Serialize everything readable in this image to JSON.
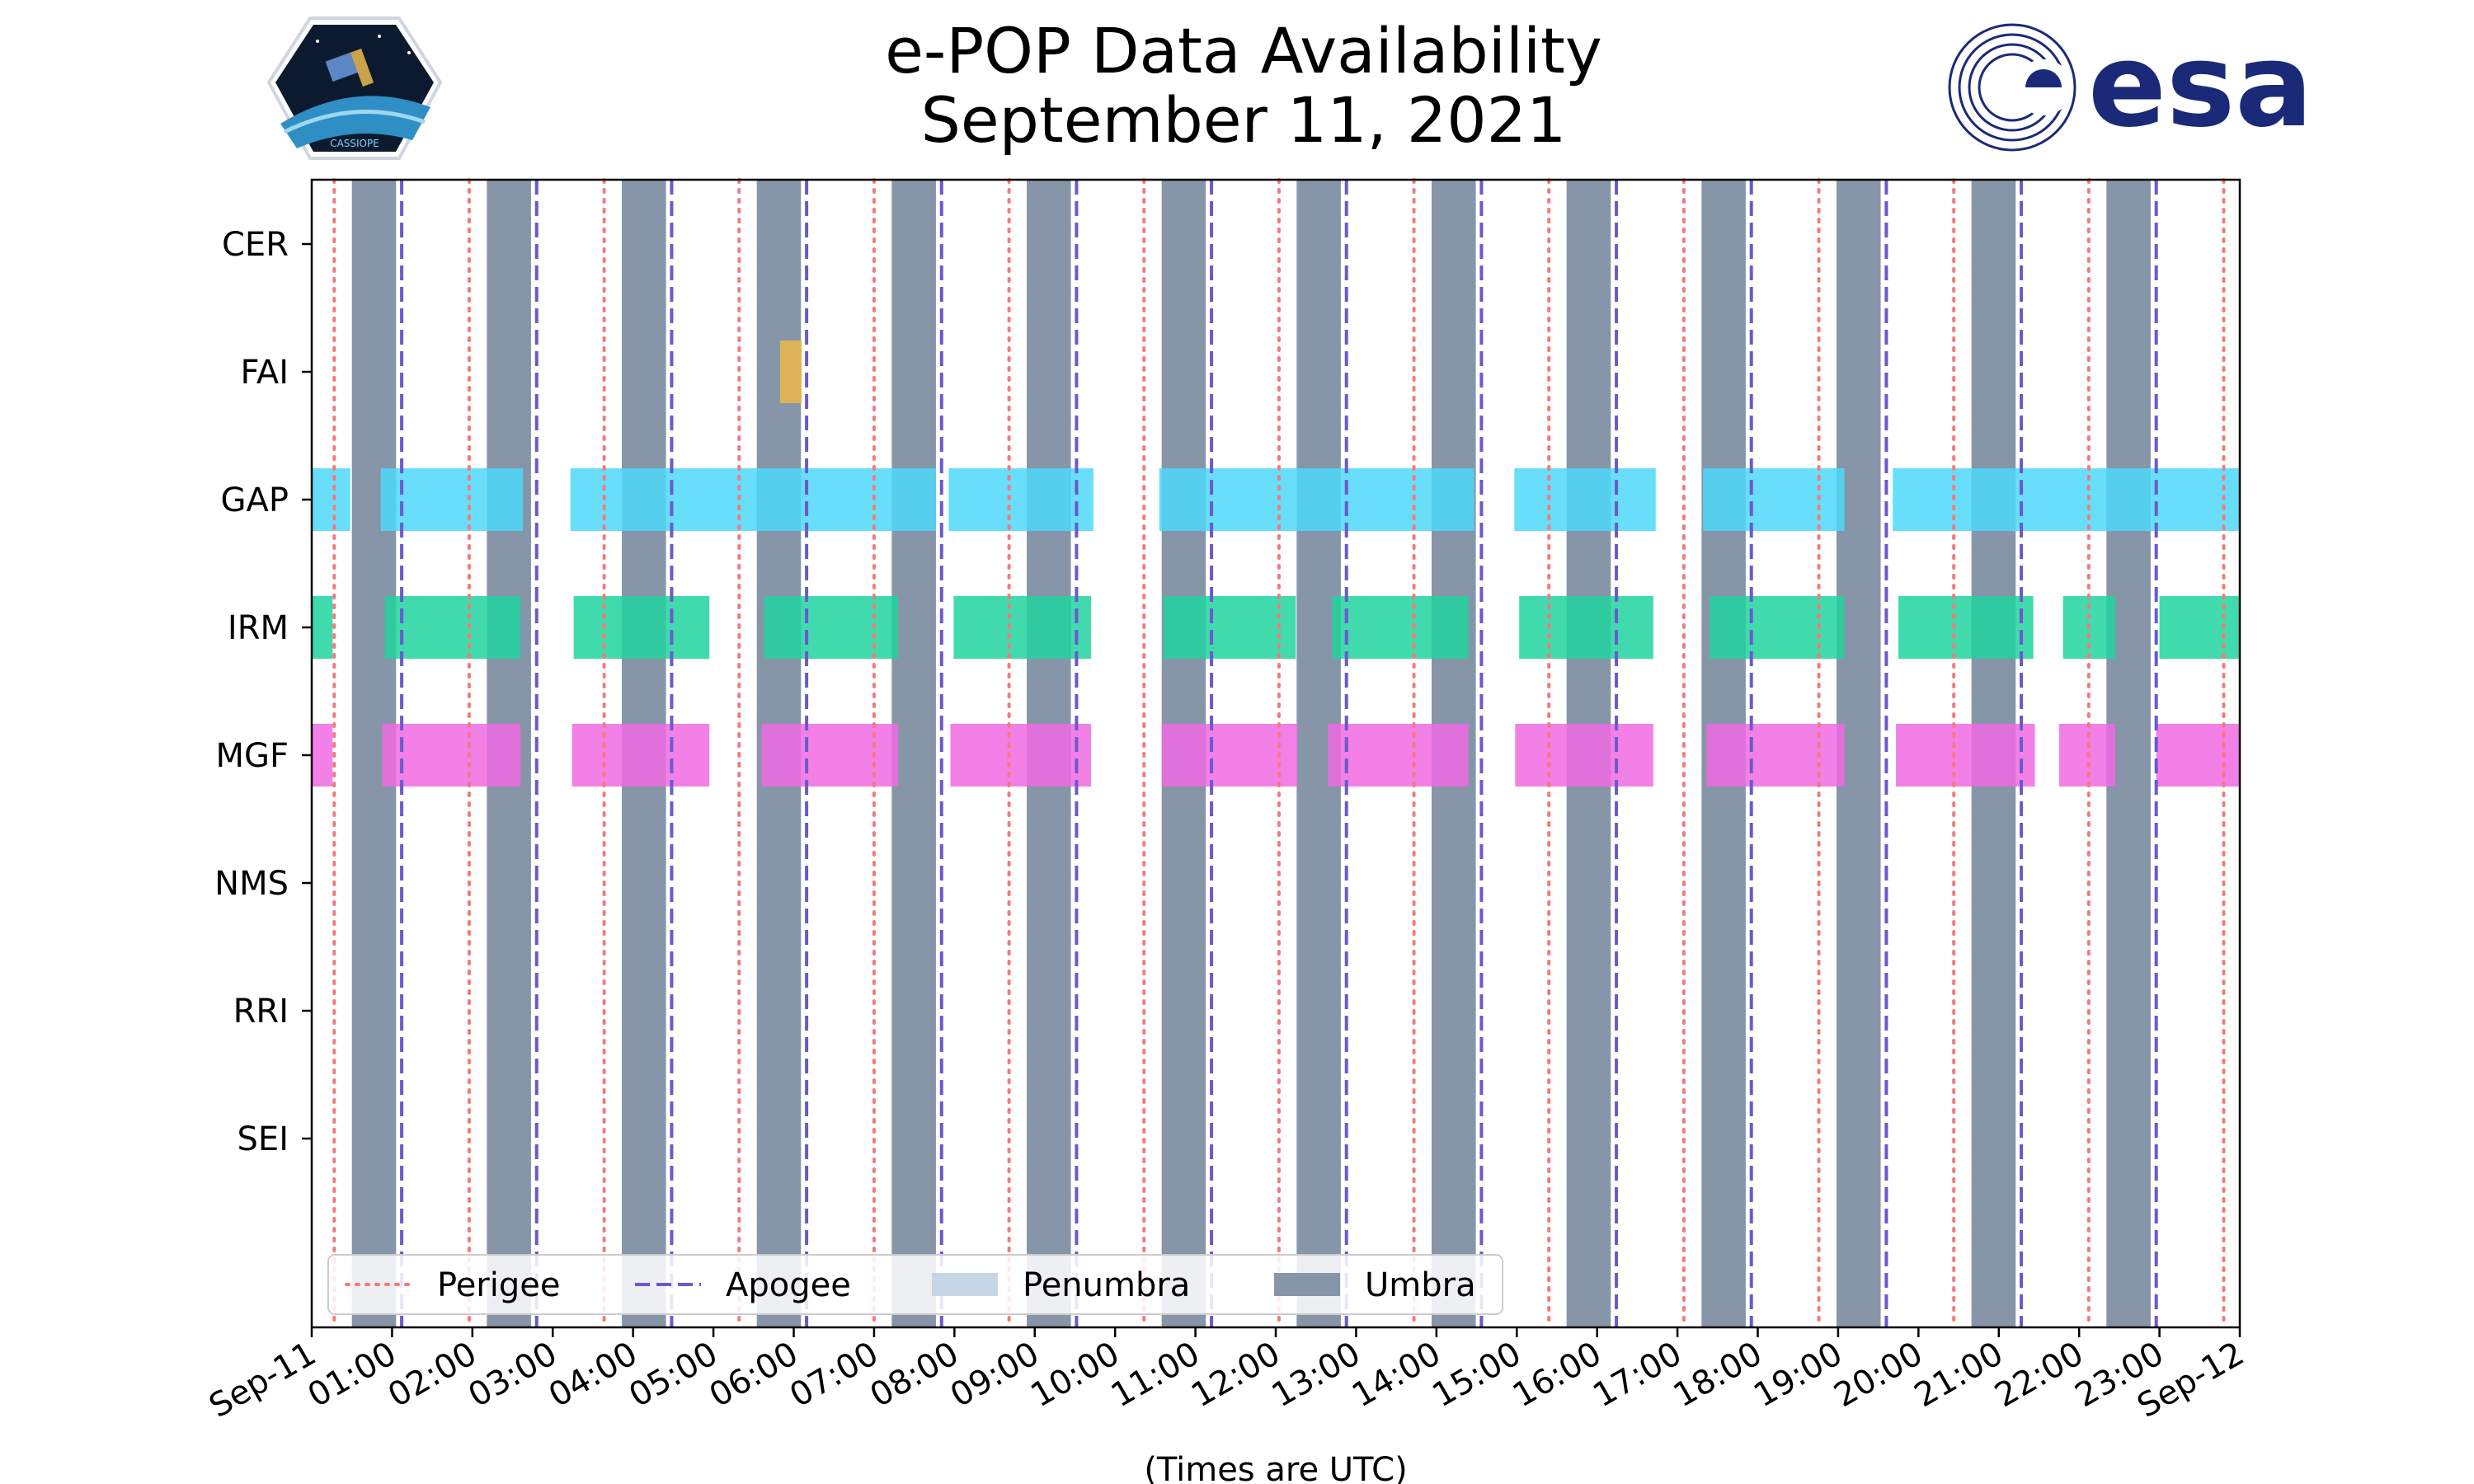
{
  "chart_data": {
    "type": "gantt",
    "title": "e-POP Data Availability",
    "subtitle": "September 11, 2021",
    "xlabel": "(Times are UTC)",
    "ylabel": "",
    "xlim_hours": [
      0,
      24
    ],
    "x_tick_labels": [
      "Sep-11",
      "01:00",
      "02:00",
      "03:00",
      "04:00",
      "05:00",
      "06:00",
      "07:00",
      "08:00",
      "09:00",
      "10:00",
      "11:00",
      "12:00",
      "13:00",
      "14:00",
      "15:00",
      "16:00",
      "17:00",
      "18:00",
      "19:00",
      "20:00",
      "21:00",
      "22:00",
      "23:00",
      "Sep-12"
    ],
    "instruments": [
      "CER",
      "FAI",
      "GAP",
      "IRM",
      "MGF",
      "NMS",
      "RRI",
      "SEI"
    ],
    "instrument_colors": {
      "CER": "#f2c14e",
      "FAI": "#ebb94a",
      "GAP": "#4dd8fa",
      "IRM": "#20d39f",
      "MGF": "#f06ae3",
      "NMS": "#999999",
      "RRI": "#999999",
      "SEI": "#999999"
    },
    "availability_hours": {
      "CER": [],
      "FAI": [
        [
          5.83,
          6.1
        ]
      ],
      "GAP": [
        [
          0.0,
          0.48
        ],
        [
          0.86,
          2.63
        ],
        [
          3.22,
          7.77
        ],
        [
          7.93,
          9.73
        ],
        [
          10.55,
          14.47
        ],
        [
          14.97,
          16.73
        ],
        [
          17.32,
          19.08
        ],
        [
          19.68,
          24.0
        ]
      ],
      "IRM": [
        [
          0.0,
          0.26
        ],
        [
          0.91,
          2.6
        ],
        [
          3.26,
          4.95
        ],
        [
          5.63,
          7.3
        ],
        [
          7.99,
          9.7
        ],
        [
          10.6,
          12.25
        ],
        [
          12.7,
          14.4
        ],
        [
          15.03,
          16.7
        ],
        [
          17.4,
          19.08
        ],
        [
          19.75,
          21.43
        ],
        [
          21.8,
          22.45
        ],
        [
          23.0,
          24.0
        ]
      ],
      "MGF": [
        [
          0.0,
          0.26
        ],
        [
          0.88,
          2.6
        ],
        [
          3.24,
          4.95
        ],
        [
          5.6,
          7.3
        ],
        [
          7.95,
          9.7
        ],
        [
          10.58,
          12.27
        ],
        [
          12.65,
          14.4
        ],
        [
          14.98,
          16.7
        ],
        [
          17.36,
          19.08
        ],
        [
          19.72,
          21.45
        ],
        [
          21.75,
          22.45
        ],
        [
          22.96,
          24.0
        ]
      ],
      "NMS": [],
      "RRI": [],
      "SEI": []
    },
    "umbra_hours": [
      [
        0.5,
        1.05
      ],
      [
        2.18,
        2.73
      ],
      [
        3.86,
        4.41
      ],
      [
        5.54,
        6.09
      ],
      [
        7.22,
        7.77
      ],
      [
        8.9,
        9.45
      ],
      [
        10.58,
        11.13
      ],
      [
        12.26,
        12.81
      ],
      [
        13.94,
        14.49
      ],
      [
        15.62,
        16.17
      ],
      [
        17.3,
        17.85
      ],
      [
        18.98,
        19.53
      ],
      [
        20.66,
        21.21
      ],
      [
        22.34,
        22.89
      ]
    ],
    "perigee_hours": [
      0.28,
      1.96,
      3.64,
      5.32,
      7.0,
      8.68,
      10.36,
      12.04,
      13.72,
      15.4,
      17.08,
      18.76,
      20.44,
      22.12,
      23.8
    ],
    "apogee_hours": [
      1.12,
      2.8,
      4.48,
      6.16,
      7.84,
      9.52,
      11.2,
      12.88,
      14.56,
      16.24,
      17.92,
      19.6,
      21.28,
      22.96
    ],
    "legend": [
      {
        "label": "Perigee",
        "style": "dotted",
        "color": "#f47a7a"
      },
      {
        "label": "Apogee",
        "style": "dashed",
        "color": "#6a5acd"
      },
      {
        "label": "Penumbra",
        "style": "patch",
        "color": "#c6d6e6"
      },
      {
        "label": "Umbra",
        "style": "patch",
        "color": "#8795a8"
      }
    ],
    "legend_position": "lower-left"
  },
  "logos": {
    "cassiope_caption": "CASSIOPE",
    "esa_wordmark": "esa"
  }
}
